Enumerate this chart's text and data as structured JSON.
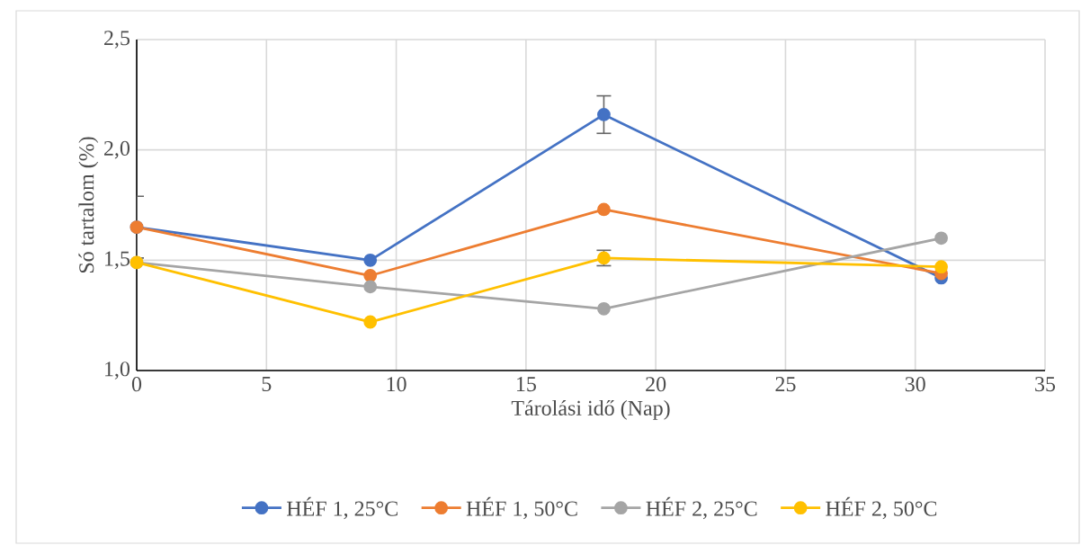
{
  "chart_data": {
    "type": "line",
    "xlabel": "Tárolási idő (Nap)",
    "ylabel": "Só tartalom (%)",
    "x": [
      0,
      9,
      18,
      31
    ],
    "series": [
      {
        "name": "HÉF 1, 25°C",
        "color": "#4472c4",
        "values": [
          1.65,
          1.5,
          2.16,
          1.42
        ],
        "errors": [
          0.14,
          null,
          0.085,
          null
        ]
      },
      {
        "name": "HÉF 1, 50°C",
        "color": "#ed7d31",
        "values": [
          1.65,
          1.43,
          1.73,
          1.44
        ]
      },
      {
        "name": "HÉF 2, 25°C",
        "color": "#a5a5a5",
        "values": [
          1.49,
          1.38,
          1.28,
          1.6
        ]
      },
      {
        "name": "HÉF 2, 50°C",
        "color": "#ffc000",
        "values": [
          1.49,
          1.22,
          1.51,
          1.47
        ],
        "errors": [
          null,
          null,
          0.035,
          null
        ]
      }
    ],
    "xlim": [
      0,
      35
    ],
    "xticks": [
      0,
      5,
      10,
      15,
      20,
      25,
      30,
      35
    ],
    "ylim": [
      1.0,
      2.5
    ],
    "yticks": [
      {
        "value": 1.0,
        "label": "1,0"
      },
      {
        "value": 1.5,
        "label": "1,5"
      },
      {
        "value": 2.0,
        "label": "2,0"
      },
      {
        "value": 2.5,
        "label": "2,5"
      }
    ],
    "grid": true,
    "legend": "bottom",
    "marker": "circle",
    "line_style": "solid"
  }
}
